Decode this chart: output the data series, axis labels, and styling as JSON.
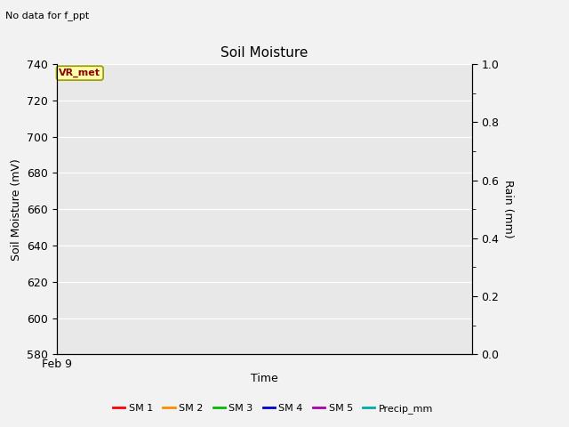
{
  "title": "Soil Moisture",
  "suptitle": "No data for f_ppt",
  "xlabel": "Time",
  "ylabel_left": "Soil Moisture (mV)",
  "ylabel_right": "Rain (mm)",
  "ylim_left": [
    580,
    740
  ],
  "ylim_right": [
    0.0,
    1.0
  ],
  "yticks_left": [
    580,
    600,
    620,
    640,
    660,
    680,
    700,
    720,
    740
  ],
  "yticks_right": [
    0.0,
    0.2,
    0.4,
    0.6,
    0.8,
    1.0
  ],
  "xtick_label": "Feb 9",
  "plot_bg": "#e8e8e8",
  "figure_bg": "#f2f2f2",
  "vr_met_label": "VR_met",
  "vr_met_box_facecolor": "#ffffaa",
  "vr_met_box_edgecolor": "#999900",
  "vr_met_text_color": "#8B0000",
  "legend_entries": [
    {
      "label": "SM 1",
      "color": "#ff0000"
    },
    {
      "label": "SM 2",
      "color": "#ff8c00"
    },
    {
      "label": "SM 3",
      "color": "#00bb00"
    },
    {
      "label": "SM 4",
      "color": "#0000cc"
    },
    {
      "label": "SM 5",
      "color": "#aa00aa"
    },
    {
      "label": "Precip_mm",
      "color": "#00aaaa"
    }
  ]
}
